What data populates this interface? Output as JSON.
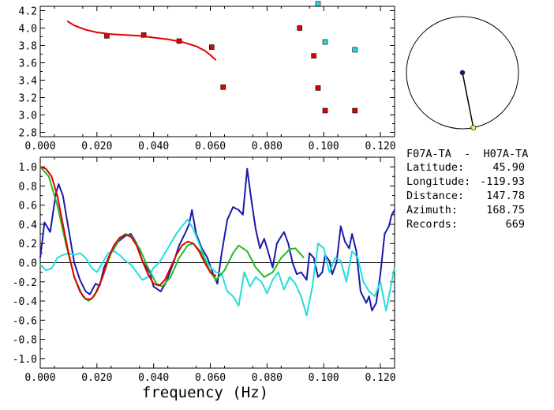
{
  "colors": {
    "background": "#ffffff",
    "axes": "#000000",
    "red": "#e00000",
    "blue": "#1a1aa8",
    "green": "#22bb22",
    "cyan": "#22dddd",
    "compass_line": "#000000",
    "compass_center": "#1a1a8a",
    "compass_point": "#ffee44"
  },
  "top_chart": {
    "type": "scatter",
    "xlim": [
      0.0,
      0.125
    ],
    "ylim": [
      2.75,
      4.25
    ],
    "x_ticks": [
      "0.000",
      "0.020",
      "0.040",
      "0.060",
      "0.080",
      "0.100",
      "0.120"
    ],
    "y_ticks": [
      "2.8",
      "3.0",
      "3.2",
      "3.4",
      "3.6",
      "3.8",
      "4.0",
      "4.2"
    ]
  },
  "bottom_chart": {
    "type": "line",
    "xlim": [
      0.0,
      0.125
    ],
    "ylim": [
      -1.1,
      1.1
    ],
    "x_ticks": [
      "0.000",
      "0.020",
      "0.040",
      "0.060",
      "0.080",
      "0.100",
      "0.120"
    ],
    "y_ticks": [
      "1.0",
      "0.8",
      "0.6",
      "0.4",
      "0.2",
      "0.0",
      "-0.2",
      "-0.4",
      "-0.6",
      "-0.8",
      "-1.0"
    ],
    "xlabel": "frequency (Hz)"
  },
  "chart_data": [
    {
      "type": "scatter",
      "xlim": [
        0.0,
        0.125
      ],
      "ylim": [
        2.75,
        4.25
      ],
      "series": [
        {
          "color": "#e00000",
          "marker": "square",
          "points": [
            [
              0.0235,
              3.91
            ],
            [
              0.0365,
              3.92
            ],
            [
              0.049,
              3.85
            ],
            [
              0.0605,
              3.78
            ],
            [
              0.0645,
              3.32
            ],
            [
              0.0915,
              4.0
            ],
            [
              0.0965,
              3.68
            ],
            [
              0.098,
              3.31
            ],
            [
              0.1005,
              3.05
            ],
            [
              0.111,
              3.05
            ]
          ]
        },
        {
          "color": "#22dddd",
          "marker": "square",
          "points": [
            [
              0.098,
              4.28
            ],
            [
              0.1005,
              3.84
            ],
            [
              0.111,
              3.75
            ]
          ]
        },
        {
          "color": "#e00000",
          "marker": "line",
          "points": [
            [
              0.0095,
              4.08
            ],
            [
              0.012,
              4.03
            ],
            [
              0.016,
              3.98
            ],
            [
              0.02,
              3.95
            ],
            [
              0.025,
              3.93
            ],
            [
              0.03,
              3.92
            ],
            [
              0.035,
              3.91
            ],
            [
              0.04,
              3.89
            ],
            [
              0.045,
              3.87
            ],
            [
              0.05,
              3.84
            ],
            [
              0.055,
              3.79
            ],
            [
              0.058,
              3.74
            ],
            [
              0.06,
              3.69
            ],
            [
              0.062,
              3.63
            ]
          ]
        }
      ]
    },
    {
      "type": "line",
      "xlim": [
        0.0,
        0.125
      ],
      "ylim": [
        -1.1,
        1.1
      ],
      "series": [
        {
          "color": "#1a1aa8",
          "points": [
            [
              0.0,
              0.05
            ],
            [
              0.0015,
              0.42
            ],
            [
              0.0035,
              0.32
            ],
            [
              0.0055,
              0.72
            ],
            [
              0.0065,
              0.82
            ],
            [
              0.008,
              0.7
            ],
            [
              0.01,
              0.35
            ],
            [
              0.012,
              0.0
            ],
            [
              0.014,
              -0.18
            ],
            [
              0.016,
              -0.3
            ],
            [
              0.0175,
              -0.33
            ],
            [
              0.0195,
              -0.22
            ],
            [
              0.021,
              -0.24
            ],
            [
              0.0225,
              -0.05
            ],
            [
              0.025,
              0.1
            ],
            [
              0.0275,
              0.22
            ],
            [
              0.03,
              0.28
            ],
            [
              0.032,
              0.3
            ],
            [
              0.034,
              0.2
            ],
            [
              0.036,
              0.02
            ],
            [
              0.0385,
              -0.1
            ],
            [
              0.04,
              -0.25
            ],
            [
              0.0425,
              -0.3
            ],
            [
              0.0445,
              -0.2
            ],
            [
              0.047,
              0.0
            ],
            [
              0.049,
              0.18
            ],
            [
              0.051,
              0.3
            ],
            [
              0.0525,
              0.4
            ],
            [
              0.0535,
              0.55
            ],
            [
              0.055,
              0.3
            ],
            [
              0.057,
              0.15
            ],
            [
              0.059,
              0.05
            ],
            [
              0.061,
              -0.12
            ],
            [
              0.0625,
              -0.22
            ],
            [
              0.064,
              0.1
            ],
            [
              0.066,
              0.45
            ],
            [
              0.068,
              0.58
            ],
            [
              0.07,
              0.55
            ],
            [
              0.0715,
              0.5
            ],
            [
              0.073,
              0.98
            ],
            [
              0.0745,
              0.65
            ],
            [
              0.076,
              0.35
            ],
            [
              0.0775,
              0.15
            ],
            [
              0.079,
              0.25
            ],
            [
              0.0805,
              0.1
            ],
            [
              0.082,
              -0.05
            ],
            [
              0.0835,
              0.2
            ],
            [
              0.0845,
              0.25
            ],
            [
              0.086,
              0.32
            ],
            [
              0.0875,
              0.2
            ],
            [
              0.089,
              0.0
            ],
            [
              0.0905,
              -0.12
            ],
            [
              0.092,
              -0.1
            ],
            [
              0.094,
              -0.18
            ],
            [
              0.095,
              0.1
            ],
            [
              0.0965,
              0.05
            ],
            [
              0.098,
              -0.15
            ],
            [
              0.0995,
              -0.1
            ],
            [
              0.1005,
              0.08
            ],
            [
              0.102,
              0.02
            ],
            [
              0.103,
              -0.12
            ],
            [
              0.1045,
              0.0
            ],
            [
              0.106,
              0.38
            ],
            [
              0.1075,
              0.22
            ],
            [
              0.109,
              0.15
            ],
            [
              0.11,
              0.3
            ],
            [
              0.1115,
              0.12
            ],
            [
              0.113,
              -0.3
            ],
            [
              0.115,
              -0.42
            ],
            [
              0.116,
              -0.35
            ],
            [
              0.117,
              -0.5
            ],
            [
              0.1185,
              -0.42
            ],
            [
              0.12,
              -0.12
            ],
            [
              0.1215,
              0.3
            ],
            [
              0.123,
              0.38
            ],
            [
              0.124,
              0.5
            ],
            [
              0.125,
              0.55
            ]
          ]
        },
        {
          "color": "#22dddd",
          "points": [
            [
              0.0,
              -0.02
            ],
            [
              0.002,
              -0.08
            ],
            [
              0.004,
              -0.06
            ],
            [
              0.006,
              0.05
            ],
            [
              0.008,
              0.08
            ],
            [
              0.01,
              0.1
            ],
            [
              0.012,
              0.08
            ],
            [
              0.014,
              0.1
            ],
            [
              0.016,
              0.05
            ],
            [
              0.018,
              -0.05
            ],
            [
              0.02,
              -0.1
            ],
            [
              0.022,
              0.0
            ],
            [
              0.024,
              0.1
            ],
            [
              0.026,
              0.12
            ],
            [
              0.028,
              0.08
            ],
            [
              0.03,
              0.02
            ],
            [
              0.032,
              -0.02
            ],
            [
              0.034,
              -0.1
            ],
            [
              0.036,
              -0.18
            ],
            [
              0.038,
              -0.15
            ],
            [
              0.04,
              -0.05
            ],
            [
              0.042,
              0.0
            ],
            [
              0.044,
              0.1
            ],
            [
              0.046,
              0.2
            ],
            [
              0.048,
              0.3
            ],
            [
              0.05,
              0.38
            ],
            [
              0.052,
              0.45
            ],
            [
              0.054,
              0.35
            ],
            [
              0.056,
              0.2
            ],
            [
              0.058,
              0.05
            ],
            [
              0.06,
              -0.05
            ],
            [
              0.062,
              -0.1
            ],
            [
              0.064,
              -0.12
            ],
            [
              0.066,
              -0.3
            ],
            [
              0.068,
              -0.35
            ],
            [
              0.07,
              -0.45
            ],
            [
              0.072,
              -0.1
            ],
            [
              0.074,
              -0.25
            ],
            [
              0.076,
              -0.15
            ],
            [
              0.078,
              -0.2
            ],
            [
              0.08,
              -0.32
            ],
            [
              0.082,
              -0.18
            ],
            [
              0.084,
              -0.1
            ],
            [
              0.086,
              -0.28
            ],
            [
              0.088,
              -0.15
            ],
            [
              0.09,
              -0.22
            ],
            [
              0.092,
              -0.35
            ],
            [
              0.094,
              -0.55
            ],
            [
              0.096,
              -0.25
            ],
            [
              0.098,
              0.2
            ],
            [
              0.1,
              0.15
            ],
            [
              0.102,
              -0.1
            ],
            [
              0.104,
              0.05
            ],
            [
              0.106,
              0.02
            ],
            [
              0.108,
              -0.2
            ],
            [
              0.11,
              0.12
            ],
            [
              0.112,
              0.05
            ],
            [
              0.114,
              -0.2
            ],
            [
              0.116,
              -0.3
            ],
            [
              0.118,
              -0.35
            ],
            [
              0.12,
              -0.2
            ],
            [
              0.122,
              -0.5
            ],
            [
              0.124,
              -0.2
            ],
            [
              0.125,
              -0.05
            ]
          ]
        },
        {
          "color": "#22bb22",
          "points": [
            [
              0.0,
              1.0
            ],
            [
              0.003,
              0.9
            ],
            [
              0.006,
              0.6
            ],
            [
              0.009,
              0.2
            ],
            [
              0.012,
              -0.15
            ],
            [
              0.015,
              -0.35
            ],
            [
              0.017,
              -0.4
            ],
            [
              0.019,
              -0.35
            ],
            [
              0.022,
              -0.15
            ],
            [
              0.025,
              0.1
            ],
            [
              0.028,
              0.25
            ],
            [
              0.03,
              0.3
            ],
            [
              0.032,
              0.28
            ],
            [
              0.035,
              0.15
            ],
            [
              0.038,
              -0.05
            ],
            [
              0.041,
              -0.22
            ],
            [
              0.043,
              -0.25
            ],
            [
              0.046,
              -0.15
            ],
            [
              0.049,
              0.05
            ],
            [
              0.052,
              0.18
            ],
            [
              0.054,
              0.2
            ],
            [
              0.057,
              0.1
            ],
            [
              0.06,
              -0.1
            ],
            [
              0.062,
              -0.18
            ],
            [
              0.065,
              -0.08
            ],
            [
              0.068,
              0.1
            ],
            [
              0.07,
              0.18
            ],
            [
              0.073,
              0.12
            ],
            [
              0.076,
              -0.05
            ],
            [
              0.079,
              -0.15
            ],
            [
              0.082,
              -0.1
            ],
            [
              0.085,
              0.05
            ],
            [
              0.088,
              0.14
            ],
            [
              0.09,
              0.15
            ],
            [
              0.093,
              0.05
            ]
          ]
        },
        {
          "color": "#e00000",
          "points": [
            [
              0.0,
              1.0
            ],
            [
              0.002,
              0.98
            ],
            [
              0.004,
              0.9
            ],
            [
              0.006,
              0.7
            ],
            [
              0.008,
              0.4
            ],
            [
              0.01,
              0.1
            ],
            [
              0.012,
              -0.15
            ],
            [
              0.014,
              -0.3
            ],
            [
              0.016,
              -0.38
            ],
            [
              0.018,
              -0.38
            ],
            [
              0.02,
              -0.3
            ],
            [
              0.022,
              -0.15
            ],
            [
              0.024,
              0.05
            ],
            [
              0.026,
              0.18
            ],
            [
              0.028,
              0.26
            ],
            [
              0.03,
              0.29
            ],
            [
              0.032,
              0.27
            ],
            [
              0.034,
              0.18
            ],
            [
              0.036,
              0.02
            ],
            [
              0.038,
              -0.12
            ],
            [
              0.04,
              -0.22
            ],
            [
              0.042,
              -0.24
            ],
            [
              0.044,
              -0.18
            ],
            [
              0.046,
              -0.05
            ],
            [
              0.048,
              0.08
            ],
            [
              0.05,
              0.18
            ],
            [
              0.052,
              0.22
            ],
            [
              0.054,
              0.2
            ],
            [
              0.056,
              0.12
            ],
            [
              0.058,
              0.0
            ],
            [
              0.06,
              -0.1
            ],
            [
              0.062,
              -0.14
            ]
          ]
        }
      ]
    }
  ],
  "compass": {
    "azimuth_deg": 168.75,
    "center_color": "#1a1a8a",
    "point_color": "#ffee44"
  },
  "info": {
    "title": "F07A-TA  -  H07A-TA",
    "rows": [
      {
        "label": "Latitude:",
        "value": "45.90"
      },
      {
        "label": "Longitude:",
        "value": "-119.93"
      },
      {
        "label": "Distance:",
        "value": "147.78"
      },
      {
        "label": "Azimuth:",
        "value": "168.75"
      },
      {
        "label": "Records:",
        "value": "669"
      }
    ]
  }
}
